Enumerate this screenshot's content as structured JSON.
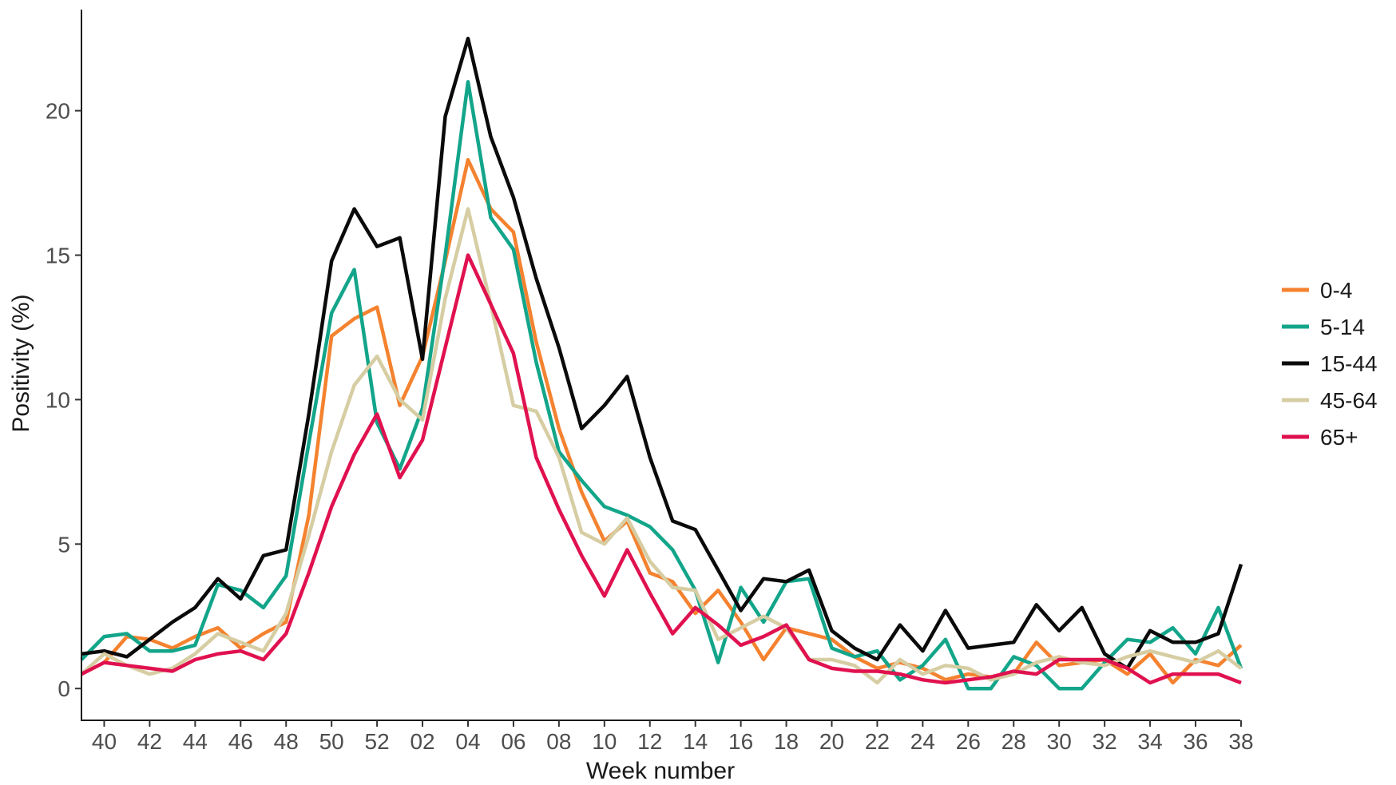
{
  "chart_data": {
    "type": "line",
    "title": "",
    "xlabel": "Week number",
    "ylabel": "Positivity (%)",
    "x": [
      "39",
      "40",
      "41",
      "42",
      "43",
      "44",
      "45",
      "46",
      "47",
      "48",
      "49",
      "50",
      "51",
      "52",
      "01",
      "02",
      "03",
      "04",
      "05",
      "06",
      "07",
      "08",
      "09",
      "10",
      "11",
      "12",
      "13",
      "14",
      "15",
      "16",
      "17",
      "18",
      "19",
      "20",
      "21",
      "22",
      "23",
      "24",
      "25",
      "26",
      "27",
      "28",
      "29",
      "30",
      "31",
      "32",
      "33",
      "34",
      "35",
      "36",
      "37",
      "38"
    ],
    "x_tick_labels": [
      "40",
      "42",
      "44",
      "46",
      "48",
      "50",
      "52",
      "02",
      "04",
      "06",
      "08",
      "10",
      "12",
      "14",
      "16",
      "18",
      "20",
      "22",
      "24",
      "26",
      "28",
      "30",
      "32",
      "34",
      "36",
      "38"
    ],
    "y_ticks": [
      0,
      5,
      10,
      15,
      20
    ],
    "y_tick_labels": [
      "0",
      "5",
      "10",
      "15",
      "20"
    ],
    "ylim": [
      -1.1,
      23.5
    ],
    "grid": false,
    "legend_position": "right",
    "series": [
      {
        "name": "0-4",
        "color": "#F4822F",
        "values": [
          0.5,
          0.9,
          1.8,
          1.7,
          1.4,
          1.8,
          2.1,
          1.4,
          1.9,
          2.3,
          6.0,
          12.2,
          12.8,
          13.2,
          9.8,
          11.5,
          14.8,
          18.3,
          16.6,
          15.8,
          12.0,
          9.0,
          6.8,
          5.1,
          5.8,
          4.0,
          3.7,
          2.6,
          3.4,
          2.3,
          1.0,
          2.1,
          1.9,
          1.7,
          1.1,
          0.7,
          0.9,
          0.7,
          0.3,
          0.5,
          0.4,
          0.5,
          1.6,
          0.8,
          0.9,
          1.0,
          0.5,
          1.2,
          0.2,
          1.0,
          0.8,
          1.5
        ]
      },
      {
        "name": "5-14",
        "color": "#13A58A",
        "values": [
          1.0,
          1.8,
          1.9,
          1.3,
          1.3,
          1.5,
          3.6,
          3.4,
          2.8,
          3.9,
          8.5,
          13.0,
          14.5,
          9.2,
          7.6,
          9.7,
          15.0,
          21.0,
          16.3,
          15.2,
          11.3,
          8.2,
          7.2,
          6.3,
          6.0,
          5.6,
          4.8,
          3.4,
          0.9,
          3.5,
          2.3,
          3.7,
          3.8,
          1.4,
          1.1,
          1.3,
          0.3,
          0.8,
          1.7,
          0.0,
          0.0,
          1.1,
          0.8,
          0.0,
          0.0,
          0.9,
          1.7,
          1.6,
          2.1,
          1.2,
          2.8,
          0.7
        ]
      },
      {
        "name": "15-44",
        "color": "#0A0A0A",
        "values": [
          1.2,
          1.3,
          1.1,
          1.7,
          2.3,
          2.8,
          3.8,
          3.1,
          4.6,
          4.8,
          9.5,
          14.8,
          16.6,
          15.3,
          15.6,
          11.4,
          19.8,
          22.5,
          19.1,
          17.0,
          14.2,
          11.8,
          9.0,
          9.8,
          10.8,
          8.0,
          5.8,
          5.5,
          4.1,
          2.7,
          3.8,
          3.7,
          4.1,
          2.0,
          1.4,
          1.0,
          2.2,
          1.3,
          2.7,
          1.4,
          1.5,
          1.6,
          2.9,
          2.0,
          2.8,
          1.2,
          0.7,
          2.0,
          1.6,
          1.6,
          1.9,
          4.3
        ]
      },
      {
        "name": "45-64",
        "color": "#D6CDA3",
        "values": [
          0.5,
          1.2,
          0.8,
          0.5,
          0.7,
          1.2,
          1.9,
          1.6,
          1.3,
          2.6,
          5.3,
          8.2,
          10.5,
          11.5,
          10.0,
          9.3,
          13.5,
          16.6,
          13.3,
          9.8,
          9.6,
          8.0,
          5.4,
          5.0,
          5.9,
          4.4,
          3.5,
          3.4,
          1.7,
          2.1,
          2.5,
          2.1,
          1.0,
          1.0,
          0.8,
          0.2,
          1.0,
          0.5,
          0.8,
          0.7,
          0.3,
          0.5,
          0.9,
          1.1,
          0.9,
          0.8,
          1.1,
          1.3,
          1.1,
          0.9,
          1.3,
          0.7
        ]
      },
      {
        "name": "65+",
        "color": "#E0114F",
        "values": [
          0.5,
          0.9,
          0.8,
          0.7,
          0.6,
          1.0,
          1.2,
          1.3,
          1.0,
          1.9,
          4.0,
          6.3,
          8.1,
          9.5,
          7.3,
          8.6,
          11.8,
          15.0,
          13.3,
          11.6,
          8.0,
          6.2,
          4.6,
          3.2,
          4.8,
          3.3,
          1.9,
          2.8,
          2.2,
          1.5,
          1.8,
          2.2,
          1.0,
          0.7,
          0.6,
          0.6,
          0.5,
          0.3,
          0.2,
          0.3,
          0.4,
          0.6,
          0.5,
          1.0,
          1.0,
          1.0,
          0.7,
          0.2,
          0.5,
          0.5,
          0.5,
          0.2
        ]
      }
    ]
  }
}
